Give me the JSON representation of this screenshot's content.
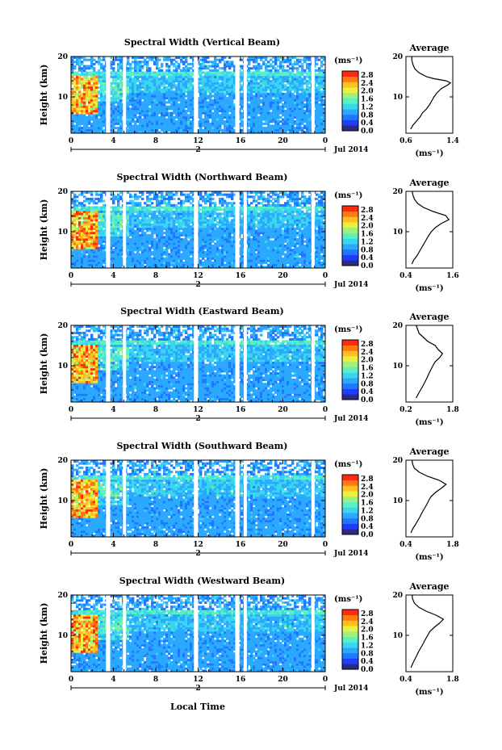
{
  "x_axis_label": "Local Time",
  "date_label": "Jul 2014",
  "day_marker": "2",
  "colorbar": {
    "unit": "(ms⁻¹)",
    "tick_labels": [
      "0.0",
      "0.4",
      "0.8",
      "1.2",
      "1.6",
      "2.0",
      "2.4",
      "2.8"
    ],
    "range": [
      0.0,
      3.0
    ],
    "colors": [
      "#2b2b82",
      "#1f3cff",
      "#1f78ff",
      "#2aa9ff",
      "#3ad6f0",
      "#5af0c0",
      "#a0f080",
      "#e8f040",
      "#ffc020",
      "#ff7a10",
      "#ff2a10"
    ]
  },
  "time_ticks": [
    "0",
    "4",
    "8",
    "12",
    "16",
    "20",
    "0"
  ],
  "time_range_hours": [
    0,
    24
  ],
  "data_gaps_hours": [
    [
      3.3,
      3.7
    ],
    [
      4.9,
      5.2
    ],
    [
      11.6,
      12.0
    ],
    [
      15.5,
      15.9
    ],
    [
      16.3,
      16.6
    ],
    [
      22.7,
      23.0
    ]
  ],
  "chart_data": [
    {
      "type": "heatmap",
      "title": "Spectral Width (Vertical Beam)",
      "xlabel": "Local Time",
      "ylabel": "Height (km)",
      "xlim": [
        0,
        24
      ],
      "ylim": [
        1,
        20
      ],
      "y_ticks": [
        "10",
        "20"
      ],
      "x_ticks": [
        "0",
        "4",
        "8",
        "12",
        "16",
        "20",
        "0"
      ],
      "profile": {
        "title": "Average",
        "xlabel": "(ms⁻¹)",
        "xlim": [
          0.6,
          1.4
        ],
        "x_ticks": [
          "0.6",
          "1.4"
        ],
        "ylim": [
          1,
          20
        ],
        "y_ticks": [
          "10",
          "20"
        ],
        "heights_km": [
          2,
          3,
          4,
          5,
          6,
          7,
          8,
          9,
          10,
          11,
          12,
          13,
          13.5,
          14,
          14.5,
          15,
          16,
          17,
          18,
          19,
          20
        ],
        "values": [
          0.68,
          0.72,
          0.78,
          0.84,
          0.88,
          0.95,
          1.0,
          1.04,
          1.08,
          1.13,
          1.2,
          1.32,
          1.36,
          1.28,
          1.08,
          0.95,
          0.82,
          0.75,
          0.72,
          0.7,
          0.7
        ]
      }
    },
    {
      "type": "heatmap",
      "title": "Spectral Width (Northward Beam)",
      "xlabel": "Local Time",
      "ylabel": "Height (km)",
      "xlim": [
        0,
        24
      ],
      "ylim": [
        1,
        20
      ],
      "y_ticks": [
        "10",
        "20"
      ],
      "x_ticks": [
        "0",
        "4",
        "8",
        "12",
        "16",
        "20",
        "0"
      ],
      "profile": {
        "title": "Average",
        "xlabel": "(ms⁻¹)",
        "xlim": [
          0.4,
          1.6
        ],
        "x_ticks": [
          "0.4",
          "1.6"
        ],
        "ylim": [
          1,
          20
        ],
        "y_ticks": [
          "10",
          "20"
        ],
        "heights_km": [
          2,
          3,
          4,
          5,
          6,
          7,
          8,
          9,
          10,
          11,
          12,
          13,
          14,
          15,
          16,
          17,
          18,
          19,
          20
        ],
        "values": [
          0.55,
          0.6,
          0.68,
          0.74,
          0.8,
          0.86,
          0.92,
          0.98,
          1.05,
          1.15,
          1.3,
          1.5,
          1.42,
          1.1,
          0.85,
          0.7,
          0.62,
          0.58,
          0.56
        ]
      }
    },
    {
      "type": "heatmap",
      "title": "Spectral Width (Eastward Beam)",
      "xlabel": "Local Time",
      "ylabel": "Height (km)",
      "xlim": [
        0,
        24
      ],
      "ylim": [
        1,
        20
      ],
      "y_ticks": [
        "10",
        "20"
      ],
      "x_ticks": [
        "0",
        "4",
        "8",
        "12",
        "16",
        "20",
        "0"
      ],
      "profile": {
        "title": "Average",
        "xlabel": "(ms⁻¹)",
        "xlim": [
          0.2,
          1.8
        ],
        "x_ticks": [
          "0.2",
          "1.8"
        ],
        "ylim": [
          1,
          20
        ],
        "y_ticks": [
          "10",
          "20"
        ],
        "heights_km": [
          2,
          3,
          4,
          5,
          6,
          7,
          8,
          9,
          10,
          11,
          12,
          13,
          14,
          15,
          16,
          17,
          18,
          19,
          20
        ],
        "values": [
          0.55,
          0.62,
          0.7,
          0.78,
          0.85,
          0.92,
          0.98,
          1.05,
          1.12,
          1.2,
          1.35,
          1.45,
          1.3,
          1.2,
          0.95,
          0.8,
          0.65,
          0.6,
          0.55
        ]
      }
    },
    {
      "type": "heatmap",
      "title": "Spectral Width (Southward Beam)",
      "xlabel": "Local Time",
      "ylabel": "Height (km)",
      "xlim": [
        0,
        24
      ],
      "ylim": [
        1,
        20
      ],
      "y_ticks": [
        "10",
        "20"
      ],
      "x_ticks": [
        "0",
        "4",
        "8",
        "12",
        "16",
        "20",
        "0"
      ],
      "profile": {
        "title": "Average",
        "xlabel": "(ms⁻¹)",
        "xlim": [
          0.4,
          1.8
        ],
        "x_ticks": [
          "0.4",
          "1.8"
        ],
        "ylim": [
          1,
          20
        ],
        "y_ticks": [
          "10",
          "20"
        ],
        "heights_km": [
          2,
          3,
          4,
          5,
          6,
          7,
          8,
          9,
          10,
          11,
          12,
          13,
          14,
          15,
          16,
          17,
          18,
          19,
          20
        ],
        "values": [
          0.55,
          0.6,
          0.68,
          0.75,
          0.82,
          0.88,
          0.95,
          1.02,
          1.08,
          1.15,
          1.28,
          1.45,
          1.6,
          1.4,
          1.05,
          0.8,
          0.65,
          0.6,
          0.58
        ]
      }
    },
    {
      "type": "heatmap",
      "title": "Spectral Width (Westward Beam)",
      "xlabel": "Local Time",
      "ylabel": "Height (km)",
      "xlim": [
        0,
        24
      ],
      "ylim": [
        1,
        20
      ],
      "y_ticks": [
        "10",
        "20"
      ],
      "x_ticks": [
        "0",
        "4",
        "8",
        "12",
        "16",
        "20",
        "0"
      ],
      "profile": {
        "title": "Average",
        "xlabel": "(ms⁻¹)",
        "xlim": [
          0.4,
          1.8
        ],
        "x_ticks": [
          "0.4",
          "1.8"
        ],
        "ylim": [
          1,
          20
        ],
        "y_ticks": [
          "10",
          "20"
        ],
        "heights_km": [
          2,
          3,
          4,
          5,
          6,
          7,
          8,
          9,
          10,
          11,
          12,
          13,
          14,
          15,
          16,
          17,
          18,
          19,
          20
        ],
        "values": [
          0.55,
          0.6,
          0.66,
          0.72,
          0.78,
          0.85,
          0.92,
          0.98,
          1.05,
          1.12,
          1.25,
          1.4,
          1.52,
          1.3,
          1.0,
          0.78,
          0.65,
          0.6,
          0.58
        ]
      }
    }
  ]
}
